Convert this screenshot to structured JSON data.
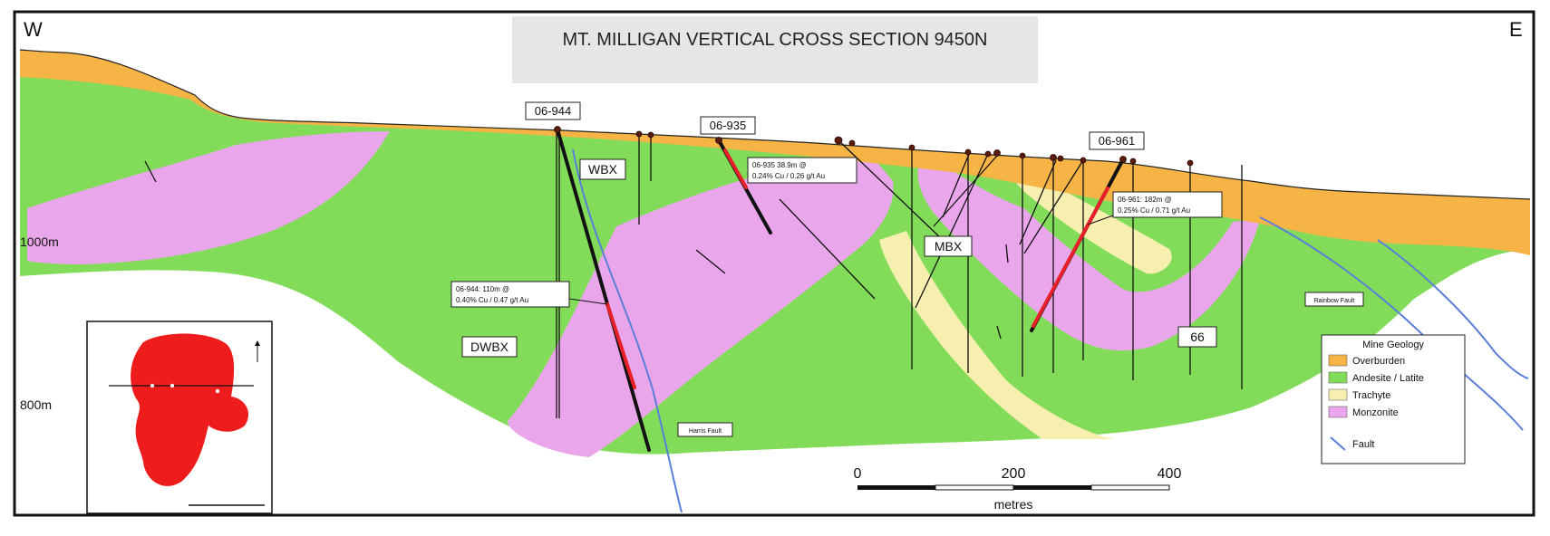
{
  "title": "MT. MILLIGAN VERTICAL CROSS SECTION 9450N",
  "compass": {
    "west": "W",
    "east": "E"
  },
  "elevations": [
    "1000m",
    "800m"
  ],
  "drill_holes": [
    {
      "id": "06-944",
      "intercept_line1": "06-944:        110m @",
      "intercept_line2": "0.40% Cu / 0.47 g/t Au"
    },
    {
      "id": "06-935",
      "intercept_line1": "06-935        38.9m @",
      "intercept_line2": "0.24% Cu / 0.26 g/t Au"
    },
    {
      "id": "06-961",
      "intercept_line1": "06-961:       182m @",
      "intercept_line2": "0.25% Cu / 0.71 g/t Au"
    }
  ],
  "zones": [
    "WBX",
    "MBX",
    "DWBX",
    "66"
  ],
  "faults": [
    "Harris Fault",
    "Rainbow Fault"
  ],
  "legend": {
    "title": "Mine Geology",
    "items": [
      {
        "label": "Overburden",
        "color": "#f5b445"
      },
      {
        "label": "Andesite / Latite",
        "color": "#82dc5a"
      },
      {
        "label": "Trachyte",
        "color": "#f7efb0"
      },
      {
        "label": "Monzonite",
        "color": "#eaa6ea"
      }
    ],
    "fault_label": "Fault",
    "fault_color": "#5b7fd8"
  },
  "scale_bar": {
    "ticks": [
      "0",
      "200",
      "400"
    ],
    "unit": "metres"
  },
  "colors": {
    "overburden": "#f5b445",
    "andesite": "#82dc5a",
    "trachyte": "#f7efb0",
    "monzonite": "#eaa6ea",
    "intercept": "#e8202a",
    "fault": "#5b7fd8",
    "inset_body": "#ee1c1c"
  }
}
